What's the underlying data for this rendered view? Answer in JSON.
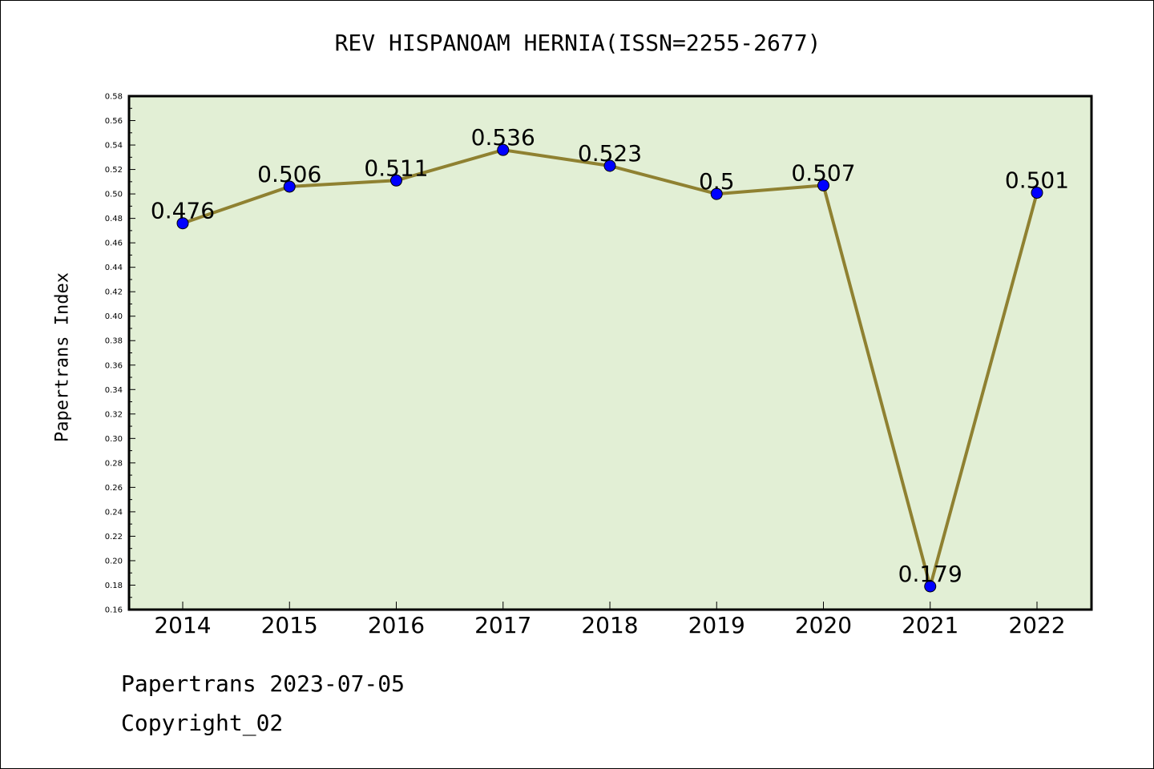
{
  "chart_data": {
    "type": "line",
    "title": "REV HISPANOAM HERNIA(ISSN=2255-2677)",
    "xlabel": "",
    "ylabel": "Papertrans Index",
    "categories": [
      "2014",
      "2015",
      "2016",
      "2017",
      "2018",
      "2019",
      "2020",
      "2021",
      "2022"
    ],
    "values": [
      0.476,
      0.506,
      0.511,
      0.536,
      0.523,
      0.5,
      0.507,
      0.179,
      0.501
    ],
    "data_labels": [
      "0.476",
      "0.506",
      "0.511",
      "0.536",
      "0.523",
      "0.5",
      "0.507",
      "0.179",
      "0.501"
    ],
    "ylim": [
      0.16,
      0.58
    ],
    "y_tick_step": 0.02,
    "grid": false,
    "colors": {
      "plot_background": "#e2efd5",
      "line": "#8f8131",
      "marker": "#0000ff"
    }
  },
  "footer": {
    "line1": "Papertrans 2023-07-05",
    "line2": "Copyright_02"
  }
}
